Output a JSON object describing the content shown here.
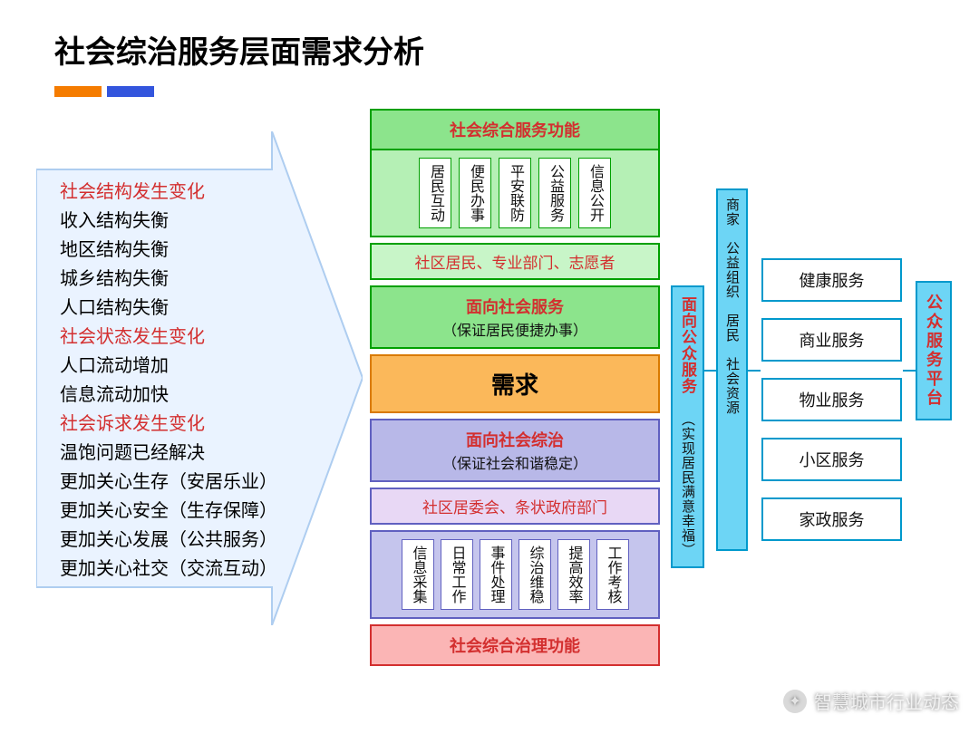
{
  "title": "社会综治服务层面需求分析",
  "accent_bars": {
    "orange": "#f57c00",
    "blue": "#3355dd"
  },
  "left_panel": {
    "arrow_fill": "#e9f2ff",
    "arrow_stroke": "#bcd4f2",
    "items": [
      {
        "text": "社会结构发生变化",
        "red": true
      },
      {
        "text": "收入结构失衡",
        "red": false
      },
      {
        "text": "地区结构失衡",
        "red": false
      },
      {
        "text": "城乡结构失衡",
        "red": false
      },
      {
        "text": "人口结构失衡",
        "red": false
      },
      {
        "text": "社会状态发生变化",
        "red": true
      },
      {
        "text": "人口流动增加",
        "red": false
      },
      {
        "text": "信息流动加快",
        "red": false
      },
      {
        "text": "社会诉求发生变化",
        "red": true
      },
      {
        "text": "温饱问题已经解决",
        "red": false
      },
      {
        "text": "更加关心生存（安居乐业）",
        "red": false
      },
      {
        "text": "更加关心安全（生存保障）",
        "red": false
      },
      {
        "text": "更加关心发展（公共服务）",
        "red": false
      },
      {
        "text": "更加关心社交（交流互动）",
        "red": false
      }
    ]
  },
  "center": {
    "top_title": "社会综合服务功能",
    "green_items": [
      "居民互动",
      "便民办事",
      "平安联防",
      "公益服务",
      "信息公开"
    ],
    "green_actors": "社区居民、专业部门、志愿者",
    "service_box": {
      "title": "面向社会服务",
      "sub": "（保证居民便捷办事）"
    },
    "demand": "需求",
    "governance_box": {
      "title": "面向社会综治",
      "sub": "（保证社会和谐稳定）"
    },
    "purple_actors": "社区居委会、条状政府部门",
    "purple_items": [
      "信息采集",
      "日常工作",
      "事件处理",
      "综治维稳",
      "提高效率",
      "工作考核"
    ],
    "bottom_title": "社会综合治理功能"
  },
  "right": {
    "public_service": {
      "title": "面向公众服务",
      "sub": "（实现居民满意幸福）"
    },
    "resources": "商家　公益组织　居民　社会资源",
    "services": [
      "健康服务",
      "商业服务",
      "物业服务",
      "小区服务",
      "家政服务"
    ],
    "platform": "公众服务平台"
  },
  "watermark": "智慧城市行业动态",
  "colors": {
    "green_border": "#00a000",
    "green_fill": "#8ce48c",
    "green_light": "#b5f0b5",
    "purple_border": "#6060c0",
    "purple_fill": "#b8b8e8",
    "orange_border": "#d97a00",
    "orange_fill": "#fbb85a",
    "cyan_border": "#0099cc",
    "cyan_fill": "#6dd5f5",
    "red_text": "#d32f2f"
  }
}
